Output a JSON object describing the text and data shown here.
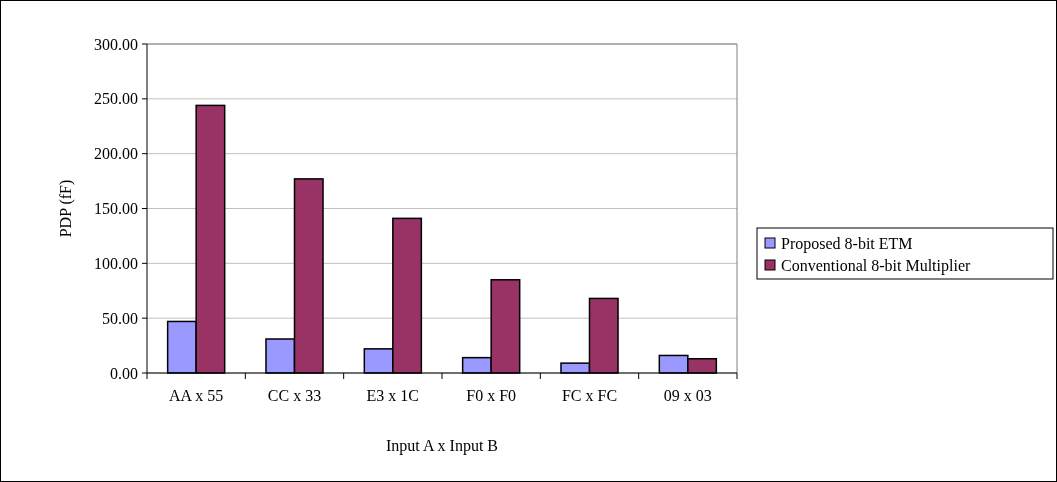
{
  "chart_data": {
    "type": "bar",
    "xlabel": "Input A x Input B",
    "ylabel": "PDP (fF)",
    "categories": [
      "AA x 55",
      "CC x 33",
      "E3 x 1C",
      "F0 x F0",
      "FC x FC",
      "09 x 03"
    ],
    "series": [
      {
        "name": "Proposed 8-bit ETM",
        "color": "#9999ff",
        "values": [
          47,
          31,
          22,
          14,
          9,
          16
        ]
      },
      {
        "name": "Conventional 8-bit Multiplier",
        "color": "#993366",
        "values": [
          244,
          177,
          141,
          85,
          68,
          13
        ]
      }
    ],
    "ylim": [
      0,
      300
    ],
    "yticks": [
      {
        "value": 0,
        "label": "0.00"
      },
      {
        "value": 50,
        "label": "50.00"
      },
      {
        "value": 100,
        "label": "100.00"
      },
      {
        "value": 150,
        "label": "150.00"
      },
      {
        "value": 200,
        "label": "200.00"
      },
      {
        "value": 250,
        "label": "250.00"
      },
      {
        "value": 300,
        "label": "300.00"
      }
    ],
    "grid": "y",
    "legend": "right"
  }
}
